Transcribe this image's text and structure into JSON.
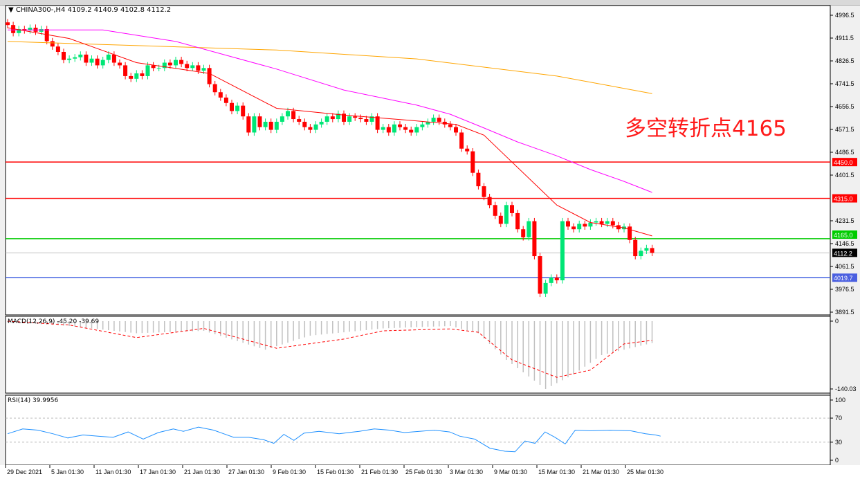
{
  "header": {
    "symbol": "CHINA300-,H4",
    "ohlc": "4109.2 4140.9 4102.8 4112.2"
  },
  "annotation": "多空转折点4165",
  "colors": {
    "bull": "#00e676",
    "bear": "#ff0000",
    "ma_fast": "#ff0000",
    "ma_mid": "#ff00ff",
    "ma_slow": "#ffa500",
    "line_red": "#ff0000",
    "line_green": "#00cc00",
    "line_blue": "#4060e0",
    "current": "#c0c0c0",
    "rsi": "#1e90ff",
    "macd_hist": "#c0c0c0",
    "macd_signal": "#ff0000"
  },
  "chart_data": [
    {
      "type": "candlestick",
      "title": "CHINA300-,H4",
      "ylim": [
        3891.5,
        4996.5
      ],
      "y_ticks": [
        "4996.5",
        "4911.5",
        "4826.5",
        "4741.5",
        "4656.5",
        "4571.5",
        "4486.5",
        "4401.5",
        "4231.5",
        "4146.5",
        "4061.5",
        "3976.5",
        "3891.5"
      ],
      "x_ticks": [
        "29 Dec 2021",
        "5 Jan 01:30",
        "11 Jan 01:30",
        "17 Jan 01:30",
        "21 Jan 01:30",
        "27 Jan 01:30",
        "9 Feb 01:30",
        "15 Feb 01:30",
        "21 Feb 01:30",
        "25 Feb 01:30",
        "3 Mar 01:30",
        "9 Mar 01:30",
        "15 Mar 01:30",
        "21 Mar 01:30",
        "25 Mar 01:30"
      ],
      "closes": [
        4960,
        4930,
        4945,
        4940,
        4950,
        4935,
        4945,
        4900,
        4880,
        4860,
        4830,
        4835,
        4840,
        4850,
        4820,
        4835,
        4810,
        4830,
        4850,
        4820,
        4810,
        4770,
        4760,
        4780,
        4770,
        4810,
        4800,
        4800,
        4820,
        4810,
        4830,
        4815,
        4800,
        4810,
        4790,
        4800,
        4740,
        4710,
        4690,
        4670,
        4640,
        4660,
        4620,
        4560,
        4620,
        4580,
        4600,
        4570,
        4600,
        4620,
        4640,
        4610,
        4600,
        4580,
        4570,
        4590,
        4600,
        4620,
        4610,
        4630,
        4600,
        4620,
        4615,
        4610,
        4600,
        4620,
        4570,
        4580,
        4560,
        4590,
        4580,
        4570,
        4560,
        4580,
        4590,
        4600,
        4615,
        4600,
        4590,
        4580,
        4560,
        4500,
        4490,
        4410,
        4360,
        4320,
        4290,
        4250,
        4220,
        4290,
        4260,
        4200,
        4170,
        4230,
        4100,
        3960,
        4000,
        4020,
        4010,
        4230,
        4210,
        4200,
        4220,
        4210,
        4225,
        4230,
        4220,
        4230,
        4215,
        4200,
        4210,
        4160,
        4100,
        4120,
        4130,
        4112.2
      ],
      "ma_fast": [
        [
          0,
          4950
        ],
        [
          11,
          4910
        ],
        [
          23,
          4820
        ],
        [
          36,
          4780
        ],
        [
          48,
          4650
        ],
        [
          60,
          4625
        ],
        [
          72,
          4605
        ],
        [
          80,
          4590
        ],
        [
          85,
          4550
        ],
        [
          90,
          4450
        ],
        [
          95,
          4350
        ],
        [
          98,
          4290
        ],
        [
          104,
          4225
        ],
        [
          110,
          4205
        ],
        [
          115,
          4175
        ]
      ],
      "ma_mid": [
        [
          0,
          4942
        ],
        [
          17,
          4942
        ],
        [
          30,
          4899
        ],
        [
          48,
          4796
        ],
        [
          60,
          4718
        ],
        [
          73,
          4662
        ],
        [
          79,
          4628
        ],
        [
          85,
          4577
        ],
        [
          91,
          4525
        ],
        [
          98,
          4473
        ],
        [
          104,
          4422
        ],
        [
          110,
          4378
        ],
        [
          115,
          4337
        ]
      ],
      "ma_slow": [
        [
          0,
          4899
        ],
        [
          48,
          4867
        ],
        [
          73,
          4834
        ],
        [
          98,
          4770
        ],
        [
          115,
          4705
        ]
      ],
      "levels": [
        {
          "label": "4450.0",
          "value": 4450.0,
          "color": "red"
        },
        {
          "label": "4315.0",
          "value": 4315.0,
          "color": "red"
        },
        {
          "label": "4165.0",
          "value": 4165.0,
          "color": "green"
        },
        {
          "label": "4112.2",
          "value": 4112.2,
          "color": "current"
        },
        {
          "label": "4019.7",
          "value": 4019.7,
          "color": "blue"
        }
      ]
    },
    {
      "type": "bar+line",
      "title": "MACD(12,26,9) -45.20 -39.69",
      "ylim": [
        -140.03,
        0
      ],
      "y_ticks": [
        "0",
        "-140.03"
      ],
      "histogram": [
        [
          0,
          -2
        ],
        [
          11,
          -10
        ],
        [
          23,
          -25
        ],
        [
          35,
          -20
        ],
        [
          46,
          -59
        ],
        [
          54,
          -30
        ],
        [
          67,
          -15
        ],
        [
          79,
          -10
        ],
        [
          84,
          -25
        ],
        [
          89,
          -80
        ],
        [
          96,
          -140
        ],
        [
          101,
          -110
        ],
        [
          106,
          -70
        ],
        [
          115,
          -45.2
        ]
      ],
      "signal": [
        [
          0,
          0
        ],
        [
          11,
          -8
        ],
        [
          23,
          -34
        ],
        [
          35,
          -15
        ],
        [
          48,
          -56
        ],
        [
          60,
          -37
        ],
        [
          67,
          -20
        ],
        [
          79,
          -16
        ],
        [
          84,
          -23
        ],
        [
          90,
          -80
        ],
        [
          98,
          -116
        ],
        [
          104,
          -101
        ],
        [
          110,
          -47
        ],
        [
          115,
          -39.69
        ]
      ]
    },
    {
      "type": "line",
      "title": "RSI(14) 39.9956",
      "ylim": [
        0,
        100
      ],
      "y_ticks": [
        "100",
        "70",
        "30",
        "0"
      ],
      "levels": [
        70,
        30
      ],
      "values": [
        [
          0,
          44
        ],
        [
          3,
          52
        ],
        [
          6,
          50
        ],
        [
          9,
          44
        ],
        [
          12,
          37
        ],
        [
          15,
          42
        ],
        [
          18,
          40
        ],
        [
          21,
          38
        ],
        [
          24,
          47
        ],
        [
          27,
          35
        ],
        [
          30,
          46
        ],
        [
          33,
          52
        ],
        [
          35,
          48
        ],
        [
          38,
          55
        ],
        [
          41,
          50
        ],
        [
          43,
          44
        ],
        [
          45,
          38
        ],
        [
          48,
          38
        ],
        [
          51,
          34
        ],
        [
          53,
          28
        ],
        [
          55,
          43
        ],
        [
          57,
          33
        ],
        [
          59,
          45
        ],
        [
          62,
          48
        ],
        [
          66,
          44
        ],
        [
          70,
          48
        ],
        [
          73,
          52
        ],
        [
          76,
          50
        ],
        [
          79,
          46
        ],
        [
          82,
          48
        ],
        [
          85,
          50
        ],
        [
          88,
          47
        ],
        [
          90,
          40
        ],
        [
          93,
          35
        ],
        [
          96,
          20
        ],
        [
          99,
          15
        ],
        [
          101,
          14
        ],
        [
          103,
          32
        ],
        [
          105,
          28
        ],
        [
          107,
          47
        ],
        [
          109,
          38
        ],
        [
          111,
          27
        ],
        [
          113,
          50
        ],
        [
          116,
          49
        ],
        [
          120,
          50
        ],
        [
          124,
          49
        ],
        [
          127,
          44
        ],
        [
          129,
          42
        ],
        [
          130,
          40
        ]
      ]
    }
  ]
}
